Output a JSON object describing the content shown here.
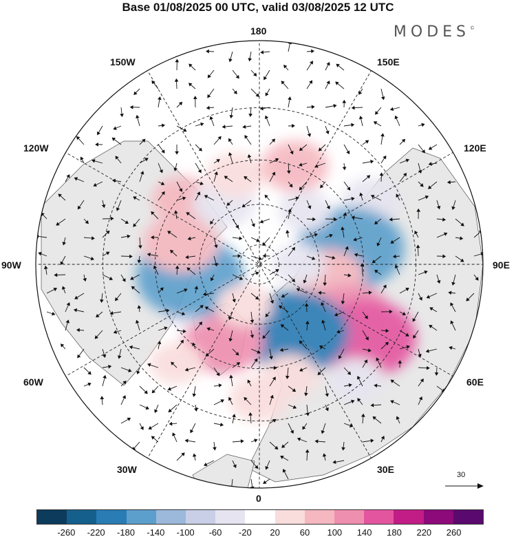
{
  "title": "Base 01/08/2025 00 UTC, valid 03/08/2025 12 UTC",
  "brand": "MODES",
  "brand_mark": "©",
  "longitude_labels": {
    "lon_180": "180",
    "lon_150w": "150W",
    "lon_150e": "150E",
    "lon_120w": "120W",
    "lon_120e": "120E",
    "lon_90w": "90W",
    "lon_90e": "90E",
    "lon_60w": "60W",
    "lon_60e": "60E",
    "lon_30w": "30W",
    "lon_30e": "30E",
    "lon_0": "0"
  },
  "reference_vector": {
    "label": "30",
    "value": 30
  },
  "colorbar": {
    "colors": [
      "#0d3b5c",
      "#155f8c",
      "#2a7cb5",
      "#5c9fcc",
      "#9cb9dc",
      "#c9cfe6",
      "#e6e4f0",
      "#ffffff",
      "#f9dcdc",
      "#f5b8c0",
      "#ef8fb0",
      "#e455a0",
      "#c21d86",
      "#8c0a7a",
      "#5a0a6e"
    ],
    "ticks": [
      "-260",
      "-220",
      "-180",
      "-140",
      "-100",
      "-60",
      "-20",
      "20",
      "60",
      "100",
      "140",
      "180",
      "220",
      "260"
    ]
  },
  "anomaly_cells": [
    {
      "lon": 120,
      "lat": 30,
      "value": -50
    },
    {
      "lon": 100,
      "lat": 45,
      "value": -180
    },
    {
      "lon": 80,
      "lat": 55,
      "value": 80
    },
    {
      "lon": 60,
      "lat": 40,
      "value": 110
    },
    {
      "lon": 55,
      "lat": 30,
      "value": 150
    },
    {
      "lon": 28,
      "lat": 52,
      "value": -210
    },
    {
      "lon": 15,
      "lat": 35,
      "value": 50
    },
    {
      "lon": -25,
      "lat": 48,
      "value": 100
    },
    {
      "lon": -40,
      "lat": 30,
      "value": 40
    },
    {
      "lon": -60,
      "lat": 48,
      "value": -30
    },
    {
      "lon": -80,
      "lat": 55,
      "value": -160
    },
    {
      "lon": -105,
      "lat": 50,
      "value": 90
    },
    {
      "lon": -130,
      "lat": 42,
      "value": 60
    },
    {
      "lon": -150,
      "lat": 55,
      "value": -60
    },
    {
      "lon": -165,
      "lat": 45,
      "value": 50
    },
    {
      "lon": 160,
      "lat": 40,
      "value": 70
    },
    {
      "lon": 140,
      "lat": 55,
      "value": -40
    },
    {
      "lon": 90,
      "lat": 70,
      "value": -40
    },
    {
      "lon": -20,
      "lat": 68,
      "value": 45
    },
    {
      "lon": 0,
      "lat": 28,
      "value": 55
    },
    {
      "lon": 40,
      "lat": 22,
      "value": -45
    }
  ]
}
